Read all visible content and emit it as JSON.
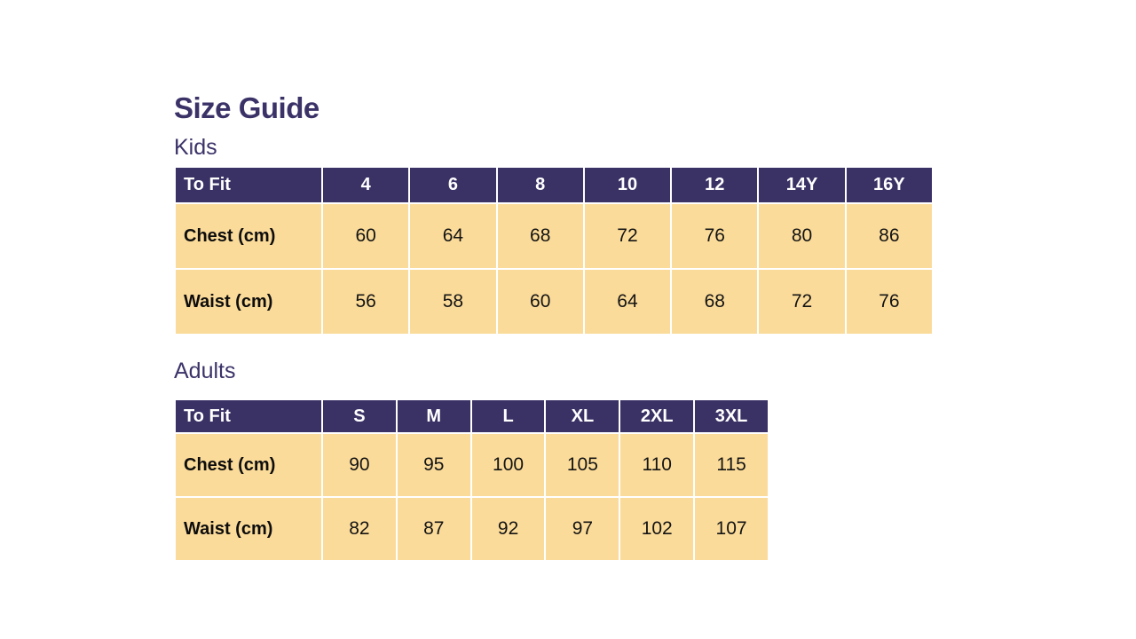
{
  "page": {
    "title": "Size Guide"
  },
  "colors": {
    "header_bg": "#3a3165",
    "cell_bg": "#fbdb99",
    "title_color": "#3b3268",
    "header_text": "#ffffff",
    "cell_text": "#141414"
  },
  "tables": [
    {
      "section_label": "Kids",
      "header": [
        "To Fit",
        "4",
        "6",
        "8",
        "10",
        "12",
        "14Y",
        "16Y"
      ],
      "rows": [
        {
          "label": "Chest (cm)",
          "values": [
            "60",
            "64",
            "68",
            "72",
            "76",
            "80",
            "86"
          ]
        },
        {
          "label": "Waist (cm)",
          "values": [
            "56",
            "58",
            "60",
            "64",
            "68",
            "72",
            "76"
          ]
        }
      ]
    },
    {
      "section_label": "Adults",
      "header": [
        "To Fit",
        "S",
        "M",
        "L",
        "XL",
        "2XL",
        "3XL"
      ],
      "rows": [
        {
          "label": "Chest (cm)",
          "values": [
            "90",
            "95",
            "100",
            "105",
            "110",
            "115"
          ]
        },
        {
          "label": "Waist (cm)",
          "values": [
            "82",
            "87",
            "92",
            "97",
            "102",
            "107"
          ]
        }
      ]
    }
  ]
}
